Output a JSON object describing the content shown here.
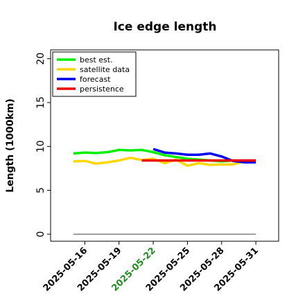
{
  "chart_data": {
    "type": "line",
    "title": "Ice edge length",
    "xlabel": "",
    "ylabel": "Length (1000km)",
    "x_ticks": [
      "2025-05-16",
      "2025-05-19",
      "2025-05-22",
      "2025-05-25",
      "2025-05-28",
      "2025-05-31"
    ],
    "highlight_tick": "2025-05-22",
    "highlight_color": "#228b22",
    "xlim": [
      "2025-05-13",
      "2025-06-02"
    ],
    "ylim": [
      -0.8,
      21
    ],
    "y_ticks": [
      0,
      5,
      10,
      15,
      20
    ],
    "grid": false,
    "legend_position": "top-left",
    "baseline": {
      "value": 0,
      "from": "2025-05-15",
      "to": "2025-05-31",
      "color": "#808080"
    },
    "series": [
      {
        "name": "best est.",
        "color": "#00ee00",
        "x": [
          "2025-05-15",
          "2025-05-16",
          "2025-05-17",
          "2025-05-18",
          "2025-05-19",
          "2025-05-20",
          "2025-05-21",
          "2025-05-22",
          "2025-05-23",
          "2025-05-24",
          "2025-05-25",
          "2025-05-26",
          "2025-05-27",
          "2025-05-28",
          "2025-05-29",
          "2025-05-30",
          "2025-05-31"
        ],
        "y": [
          9.2,
          9.3,
          9.25,
          9.35,
          9.6,
          9.55,
          9.6,
          9.35,
          9.0,
          8.8,
          8.6,
          8.5,
          8.4,
          8.3,
          8.4,
          8.35,
          8.3
        ]
      },
      {
        "name": "satellite data",
        "color": "#ffd700",
        "x": [
          "2025-05-15",
          "2025-05-16",
          "2025-05-17",
          "2025-05-18",
          "2025-05-19",
          "2025-05-20",
          "2025-05-21",
          "2025-05-22",
          "2025-05-23",
          "2025-05-24",
          "2025-05-25",
          "2025-05-26",
          "2025-05-27",
          "2025-05-28",
          "2025-05-29",
          "2025-05-30",
          "2025-05-31"
        ],
        "y": [
          8.3,
          8.35,
          8.05,
          8.2,
          8.4,
          8.7,
          8.45,
          8.6,
          8.1,
          8.5,
          7.8,
          8.1,
          7.9,
          7.95,
          7.95,
          8.3,
          8.4
        ]
      },
      {
        "name": "forecast",
        "color": "#0000ee",
        "x": [
          "2025-05-22",
          "2025-05-23",
          "2025-05-24",
          "2025-05-25",
          "2025-05-26",
          "2025-05-27",
          "2025-05-28",
          "2025-05-29",
          "2025-05-30",
          "2025-05-31"
        ],
        "y": [
          9.7,
          9.3,
          9.2,
          9.05,
          9.05,
          9.2,
          8.85,
          8.35,
          8.2,
          8.2
        ]
      },
      {
        "name": "persistence",
        "color": "#ee0000",
        "x": [
          "2025-05-21",
          "2025-05-31"
        ],
        "y": [
          8.4,
          8.4
        ]
      }
    ]
  }
}
